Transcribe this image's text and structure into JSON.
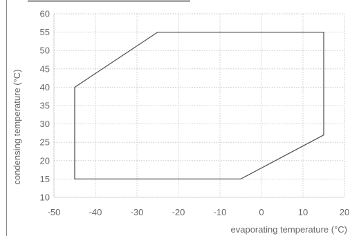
{
  "chart_data": {
    "type": "line",
    "xlabel": "evaporating temperature (°C)",
    "ylabel": "condensing temperature (°C)",
    "xlim": [
      -50,
      20
    ],
    "ylim": [
      10,
      60
    ],
    "x_ticks": [
      -50,
      -40,
      -30,
      -20,
      -10,
      0,
      10,
      20
    ],
    "y_ticks": [
      10,
      15,
      20,
      25,
      30,
      35,
      40,
      45,
      50,
      55,
      60
    ],
    "grid": true,
    "series": [
      {
        "x": [
          -45,
          -25,
          15,
          15,
          -5,
          -45,
          -45
        ],
        "y": [
          40,
          55,
          55,
          27,
          15,
          15,
          40
        ]
      }
    ],
    "colors": {
      "line": "#555555",
      "grid": "#bdbdbd",
      "text": "#666666",
      "frame": "#444444"
    }
  }
}
